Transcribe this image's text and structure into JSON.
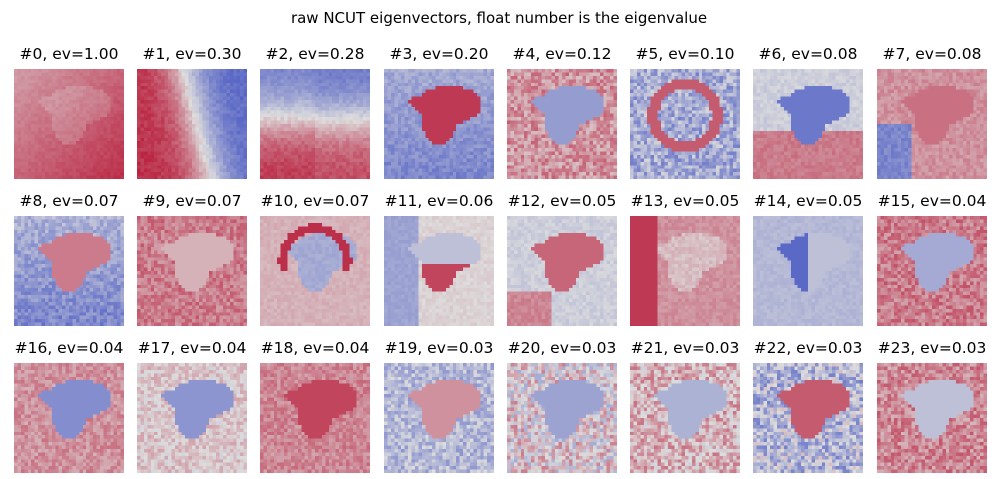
{
  "figure": {
    "suptitle": "raw NCUT eigenvectors, float number is the eigenvalue",
    "colormap": "coolwarm",
    "colors": {
      "low": "#3b4cc0",
      "mid": "#dddddd",
      "high": "#b40426"
    }
  },
  "panels": [
    {
      "label": "#0, ev=1.00"
    },
    {
      "label": "#1, ev=0.30"
    },
    {
      "label": "#2, ev=0.28"
    },
    {
      "label": "#3, ev=0.20"
    },
    {
      "label": "#4, ev=0.12"
    },
    {
      "label": "#5, ev=0.10"
    },
    {
      "label": "#6, ev=0.08"
    },
    {
      "label": "#7, ev=0.08"
    },
    {
      "label": "#8, ev=0.07"
    },
    {
      "label": "#9, ev=0.07"
    },
    {
      "label": "#10, ev=0.07"
    },
    {
      "label": "#11, ev=0.06"
    },
    {
      "label": "#12, ev=0.05"
    },
    {
      "label": "#13, ev=0.05"
    },
    {
      "label": "#14, ev=0.05"
    },
    {
      "label": "#15, ev=0.04"
    },
    {
      "label": "#16, ev=0.04"
    },
    {
      "label": "#17, ev=0.04"
    },
    {
      "label": "#18, ev=0.04"
    },
    {
      "label": "#19, ev=0.03"
    },
    {
      "label": "#20, ev=0.03"
    },
    {
      "label": "#21, ev=0.03"
    },
    {
      "label": "#22, ev=0.03"
    },
    {
      "label": "#23, ev=0.03"
    }
  ]
}
